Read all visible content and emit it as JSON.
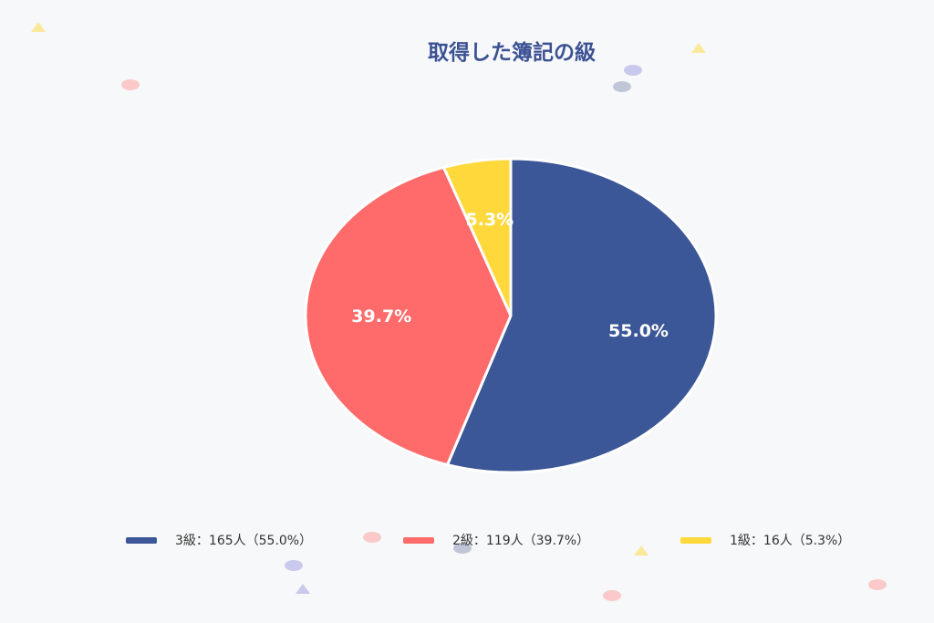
{
  "chart_data": {
    "type": "pie",
    "title": "取得した簿記の級",
    "slices": [
      {
        "label": "3級",
        "count": 165,
        "percent": 55.0,
        "percent_label": "55.0%",
        "legend": "3級：165人（55.0%）",
        "color": "#3c5797"
      },
      {
        "label": "2級",
        "count": 119,
        "percent": 39.7,
        "percent_label": "39.7%",
        "legend": "2級：119人（39.7%）",
        "color": "#ff6b6b"
      },
      {
        "label": "1級",
        "count": 16,
        "percent": 5.3,
        "percent_label": "5.3%",
        "legend": "1級：16人（5.3%）",
        "color": "#ffd93c"
      }
    ],
    "start_angle": "12 o'clock",
    "direction": "clockwise",
    "legend_position": "bottom"
  }
}
